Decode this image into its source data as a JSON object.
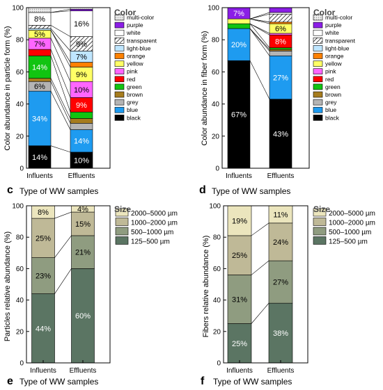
{
  "panel_letters": [
    "c",
    "d",
    "e",
    "f"
  ],
  "chart_data": [
    {
      "id": "color-particles",
      "type": "bar",
      "stacked": true,
      "categories": [
        "Influents",
        "Effluents"
      ],
      "xlabel": "Type of WW samples",
      "ylabel": "Color abundance in particle form (%)",
      "ylim": [
        0,
        100
      ],
      "yticks": [
        0,
        20,
        40,
        60,
        80,
        100
      ],
      "legend_title": "Color",
      "legend_position": "right",
      "grid": false,
      "series": [
        {
          "name": "black",
          "values": [
            14,
            10
          ],
          "color": "#000000",
          "label_color": "#ffffff",
          "pattern": null,
          "labels": [
            "14%",
            "10%"
          ]
        },
        {
          "name": "blue",
          "values": [
            34,
            14
          ],
          "color": "#1e9bf0",
          "label_color": "#ffffff",
          "pattern": null,
          "labels": [
            "34%",
            "14%"
          ]
        },
        {
          "name": "grey",
          "values": [
            6,
            4
          ],
          "color": "#b4b4b4",
          "label_color": "#000000",
          "pattern": null,
          "labels": [
            "6%",
            ""
          ]
        },
        {
          "name": "brown",
          "values": [
            2,
            3
          ],
          "color": "#a67c1e",
          "label_color": "#000000",
          "pattern": null,
          "labels": [
            "",
            ""
          ]
        },
        {
          "name": "green",
          "values": [
            14,
            4
          ],
          "color": "#11c411",
          "label_color": "#ffffff",
          "pattern": null,
          "labels": [
            "14%",
            ""
          ]
        },
        {
          "name": "red",
          "values": [
            4,
            9
          ],
          "color": "#ff0000",
          "label_color": "#ffffff",
          "pattern": null,
          "labels": [
            "",
            "9%"
          ]
        },
        {
          "name": "pink",
          "values": [
            7,
            10
          ],
          "color": "#ff66ff",
          "label_color": "#000000",
          "pattern": null,
          "labels": [
            "7%",
            "10%"
          ]
        },
        {
          "name": "yellow",
          "values": [
            5,
            9
          ],
          "color": "#ffff66",
          "label_color": "#000000",
          "pattern": null,
          "labels": [
            "5%",
            "9%"
          ]
        },
        {
          "name": "orange",
          "values": [
            0,
            3
          ],
          "color": "#ff8000",
          "label_color": "#000000",
          "pattern": null,
          "labels": [
            "",
            ""
          ]
        },
        {
          "name": "light-blue",
          "values": [
            1,
            7
          ],
          "color": "#bfe6ff",
          "label_color": "#000000",
          "pattern": null,
          "labels": [
            "",
            "7%"
          ]
        },
        {
          "name": "transparent",
          "values": [
            2,
            9
          ],
          "color": "#ffffff",
          "label_color": "#000000",
          "pattern": "hatch",
          "labels": [
            "",
            "9%"
          ]
        },
        {
          "name": "white",
          "values": [
            8,
            16
          ],
          "color": "#ffffff",
          "label_color": "#000000",
          "pattern": null,
          "labels": [
            "8%",
            "16%"
          ]
        },
        {
          "name": "purple",
          "values": [
            0,
            1
          ],
          "color": "#8b1ee6",
          "label_color": "#ffffff",
          "pattern": null,
          "labels": [
            "",
            ""
          ]
        },
        {
          "name": "multi-color",
          "values": [
            3,
            1
          ],
          "color": "#e3e3e3",
          "label_color": "#000000",
          "pattern": "dots",
          "labels": [
            "",
            ""
          ]
        }
      ]
    },
    {
      "id": "color-fibers",
      "type": "bar",
      "stacked": true,
      "categories": [
        "Influents",
        "Effluents"
      ],
      "xlabel": "Type of WW samples",
      "ylabel": "Color abundance in fiber form (%)",
      "ylim": [
        0,
        100
      ],
      "yticks": [
        0,
        20,
        40,
        60,
        80,
        100
      ],
      "legend_title": "Color",
      "legend_position": "right",
      "grid": false,
      "series": [
        {
          "name": "black",
          "values": [
            67,
            43
          ],
          "color": "#000000",
          "label_color": "#ffffff",
          "pattern": null,
          "labels": [
            "67%",
            "43%"
          ]
        },
        {
          "name": "blue",
          "values": [
            20,
            27
          ],
          "color": "#1e9bf0",
          "label_color": "#ffffff",
          "pattern": null,
          "labels": [
            "20%",
            "27%"
          ]
        },
        {
          "name": "grey",
          "values": [
            0,
            3
          ],
          "color": "#b4b4b4",
          "label_color": "#000000",
          "pattern": null,
          "labels": [
            "",
            ""
          ]
        },
        {
          "name": "brown",
          "values": [
            0,
            1
          ],
          "color": "#a67c1e",
          "label_color": "#000000",
          "pattern": null,
          "labels": [
            "",
            ""
          ]
        },
        {
          "name": "green",
          "values": [
            3,
            1
          ],
          "color": "#11c411",
          "label_color": "#000000",
          "pattern": null,
          "labels": [
            "",
            ""
          ]
        },
        {
          "name": "red",
          "values": [
            0,
            8
          ],
          "color": "#ff0000",
          "label_color": "#ffffff",
          "pattern": null,
          "labels": [
            "",
            "8%"
          ]
        },
        {
          "name": "pink",
          "values": [
            0,
            1
          ],
          "color": "#ff66ff",
          "label_color": "#000000",
          "pattern": null,
          "labels": [
            "",
            ""
          ]
        },
        {
          "name": "yellow",
          "values": [
            3,
            6
          ],
          "color": "#ffff66",
          "label_color": "#000000",
          "pattern": null,
          "labels": [
            "",
            "6%"
          ]
        },
        {
          "name": "orange",
          "values": [
            0,
            1
          ],
          "color": "#ff8000",
          "label_color": "#000000",
          "pattern": null,
          "labels": [
            "",
            ""
          ]
        },
        {
          "name": "light-blue",
          "values": [
            0,
            0
          ],
          "color": "#bfe6ff",
          "label_color": "#000000",
          "pattern": null,
          "labels": [
            "",
            ""
          ]
        },
        {
          "name": "transparent",
          "values": [
            0,
            5
          ],
          "color": "#ffffff",
          "label_color": "#000000",
          "pattern": "hatch",
          "labels": [
            "",
            ""
          ]
        },
        {
          "name": "white",
          "values": [
            0,
            1
          ],
          "color": "#ffffff",
          "label_color": "#000000",
          "pattern": null,
          "labels": [
            "",
            ""
          ]
        },
        {
          "name": "purple",
          "values": [
            7,
            3
          ],
          "color": "#8b1ee6",
          "label_color": "#ffffff",
          "pattern": null,
          "labels": [
            "7%",
            ""
          ]
        },
        {
          "name": "multi-color",
          "values": [
            0,
            0
          ],
          "color": "#e3e3e3",
          "label_color": "#000000",
          "pattern": "dots",
          "labels": [
            "",
            ""
          ]
        }
      ]
    },
    {
      "id": "size-particles",
      "type": "bar",
      "stacked": true,
      "categories": [
        "Influents",
        "Effluents"
      ],
      "xlabel": "Type of WW samples",
      "ylabel": "Particles relative abundance (%)",
      "ylim": [
        0,
        100
      ],
      "yticks": [
        0,
        20,
        40,
        60,
        80,
        100
      ],
      "legend_title": "Size",
      "legend_position": "right",
      "grid": false,
      "series": [
        {
          "name": "125–500 µm",
          "values": [
            44,
            60
          ],
          "color": "#5b7563",
          "label_color": "#ffffff",
          "pattern": null,
          "labels": [
            "44%",
            "60%"
          ]
        },
        {
          "name": "500–1000 µm",
          "values": [
            23,
            21
          ],
          "color": "#8f9c80",
          "label_color": "#000000",
          "pattern": null,
          "labels": [
            "23%",
            "21%"
          ]
        },
        {
          "name": "1000–2000 µm",
          "values": [
            25,
            15
          ],
          "color": "#bfb997",
          "label_color": "#000000",
          "pattern": null,
          "labels": [
            "25%",
            "15%"
          ]
        },
        {
          "name": "2000–5000 µm",
          "values": [
            8,
            4
          ],
          "color": "#ebe5bd",
          "label_color": "#000000",
          "pattern": null,
          "labels": [
            "8%",
            "4%"
          ]
        }
      ]
    },
    {
      "id": "size-fibers",
      "type": "bar",
      "stacked": true,
      "categories": [
        "Influents",
        "Effluents"
      ],
      "xlabel": "Type of WW samples",
      "ylabel": "Fibers relative abundance (%)",
      "ylim": [
        0,
        100
      ],
      "yticks": [
        0,
        20,
        40,
        60,
        80,
        100
      ],
      "legend_title": "Size",
      "legend_position": "right",
      "grid": false,
      "series": [
        {
          "name": "125–500 µm",
          "values": [
            25,
            38
          ],
          "color": "#5b7563",
          "label_color": "#ffffff",
          "pattern": null,
          "labels": [
            "25%",
            "38%"
          ]
        },
        {
          "name": "500–1000 µm",
          "values": [
            31,
            27
          ],
          "color": "#8f9c80",
          "label_color": "#000000",
          "pattern": null,
          "labels": [
            "31%",
            "27%"
          ]
        },
        {
          "name": "1000–2000 µm",
          "values": [
            25,
            24
          ],
          "color": "#bfb997",
          "label_color": "#000000",
          "pattern": null,
          "labels": [
            "25%",
            "24%"
          ]
        },
        {
          "name": "2000–5000 µm",
          "values": [
            19,
            11
          ],
          "color": "#ebe5bd",
          "label_color": "#000000",
          "pattern": null,
          "labels": [
            "19%",
            "11%"
          ]
        }
      ]
    }
  ]
}
